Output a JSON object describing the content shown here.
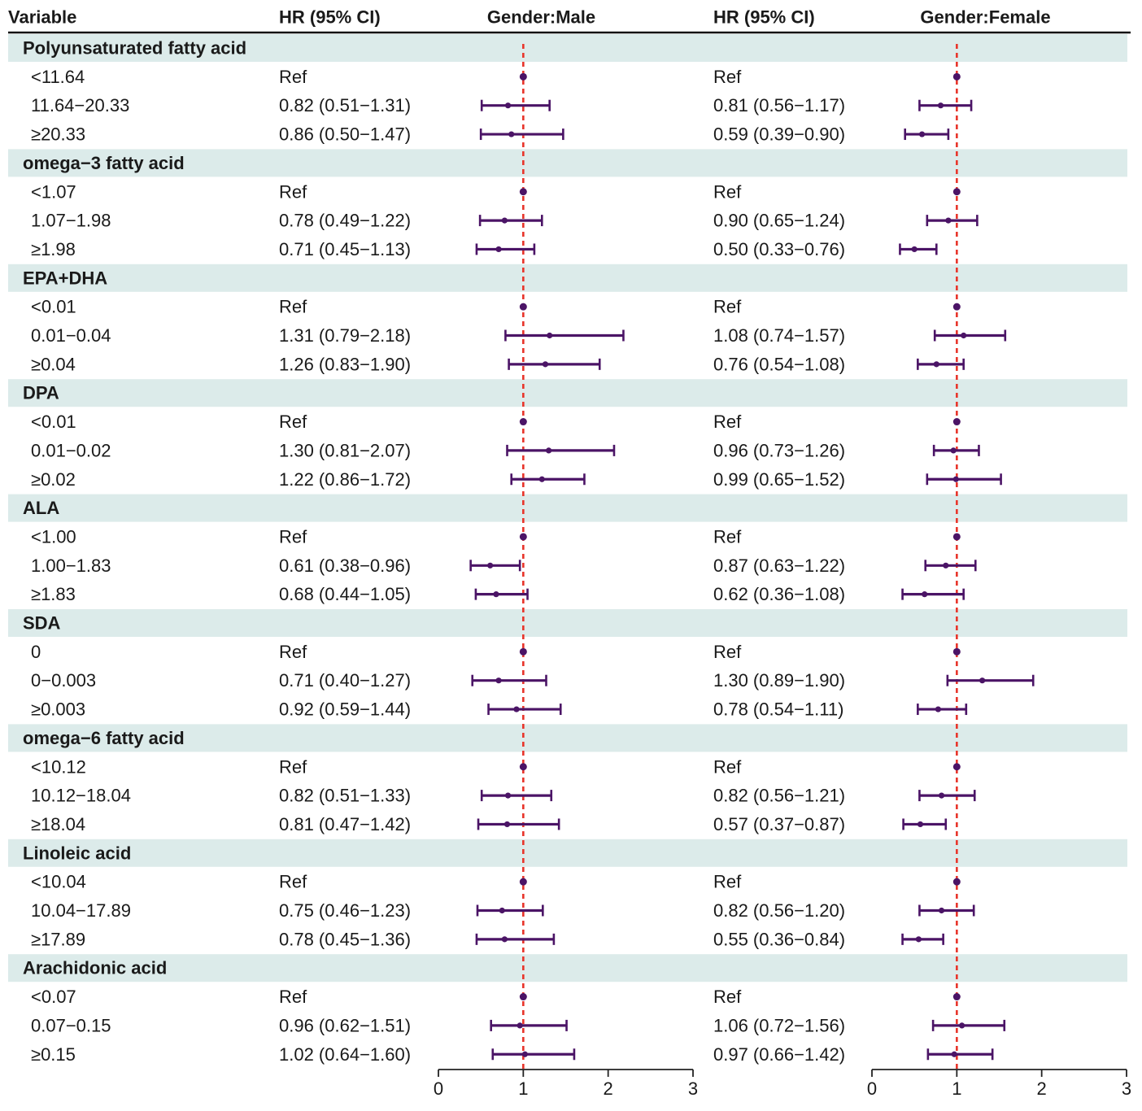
{
  "chart_data": {
    "type": "forest",
    "headers": {
      "variable": "Variable",
      "hr_male": "HR (95% CI)",
      "panel_male": "Gender:Male",
      "hr_female": "HR (95% CI)",
      "panel_female": "Gender:Female"
    },
    "reference_line": 1,
    "xlim": [
      0,
      3
    ],
    "xticks": [
      "0",
      "1",
      "2",
      "3"
    ],
    "groups": [
      {
        "name": "Polyunsaturated fatty acid",
        "rows": [
          {
            "label": "<11.64",
            "male": {
              "text": "Ref",
              "hr": 1
            },
            "female": {
              "text": "Ref",
              "hr": 1
            }
          },
          {
            "label": "11.64−20.33",
            "male": {
              "text": "0.82 (0.51−1.31)",
              "hr": 0.82,
              "lo": 0.51,
              "hi": 1.31
            },
            "female": {
              "text": "0.81 (0.56−1.17)",
              "hr": 0.81,
              "lo": 0.56,
              "hi": 1.17
            }
          },
          {
            "label": "≥20.33",
            "male": {
              "text": "0.86 (0.50−1.47)",
              "hr": 0.86,
              "lo": 0.5,
              "hi": 1.47
            },
            "female": {
              "text": "0.59 (0.39−0.90)",
              "hr": 0.59,
              "lo": 0.39,
              "hi": 0.9
            }
          }
        ]
      },
      {
        "name": "omega−3 fatty acid",
        "rows": [
          {
            "label": "<1.07",
            "male": {
              "text": "Ref",
              "hr": 1
            },
            "female": {
              "text": "Ref",
              "hr": 1
            }
          },
          {
            "label": "1.07−1.98",
            "male": {
              "text": "0.78 (0.49−1.22)",
              "hr": 0.78,
              "lo": 0.49,
              "hi": 1.22
            },
            "female": {
              "text": "0.90 (0.65−1.24)",
              "hr": 0.9,
              "lo": 0.65,
              "hi": 1.24
            }
          },
          {
            "label": "≥1.98",
            "male": {
              "text": "0.71 (0.45−1.13)",
              "hr": 0.71,
              "lo": 0.45,
              "hi": 1.13
            },
            "female": {
              "text": "0.50 (0.33−0.76)",
              "hr": 0.5,
              "lo": 0.33,
              "hi": 0.76
            }
          }
        ]
      },
      {
        "name": "EPA+DHA",
        "rows": [
          {
            "label": "<0.01",
            "male": {
              "text": "Ref",
              "hr": 1
            },
            "female": {
              "text": "Ref",
              "hr": 1
            }
          },
          {
            "label": "0.01−0.04",
            "male": {
              "text": "1.31 (0.79−2.18)",
              "hr": 1.31,
              "lo": 0.79,
              "hi": 2.18
            },
            "female": {
              "text": "1.08 (0.74−1.57)",
              "hr": 1.08,
              "lo": 0.74,
              "hi": 1.57
            }
          },
          {
            "label": "≥0.04",
            "male": {
              "text": "1.26 (0.83−1.90)",
              "hr": 1.26,
              "lo": 0.83,
              "hi": 1.9
            },
            "female": {
              "text": "0.76 (0.54−1.08)",
              "hr": 0.76,
              "lo": 0.54,
              "hi": 1.08
            }
          }
        ]
      },
      {
        "name": "DPA",
        "rows": [
          {
            "label": "<0.01",
            "male": {
              "text": "Ref",
              "hr": 1
            },
            "female": {
              "text": "Ref",
              "hr": 1
            }
          },
          {
            "label": "0.01−0.02",
            "male": {
              "text": "1.30 (0.81−2.07)",
              "hr": 1.3,
              "lo": 0.81,
              "hi": 2.07
            },
            "female": {
              "text": "0.96 (0.73−1.26)",
              "hr": 0.96,
              "lo": 0.73,
              "hi": 1.26
            }
          },
          {
            "label": "≥0.02",
            "male": {
              "text": "1.22 (0.86−1.72)",
              "hr": 1.22,
              "lo": 0.86,
              "hi": 1.72
            },
            "female": {
              "text": "0.99 (0.65−1.52)",
              "hr": 0.99,
              "lo": 0.65,
              "hi": 1.52
            }
          }
        ]
      },
      {
        "name": "ALA",
        "rows": [
          {
            "label": "<1.00",
            "male": {
              "text": "Ref",
              "hr": 1
            },
            "female": {
              "text": "Ref",
              "hr": 1
            }
          },
          {
            "label": "1.00−1.83",
            "male": {
              "text": "0.61 (0.38−0.96)",
              "hr": 0.61,
              "lo": 0.38,
              "hi": 0.96
            },
            "female": {
              "text": "0.87 (0.63−1.22)",
              "hr": 0.87,
              "lo": 0.63,
              "hi": 1.22
            }
          },
          {
            "label": "≥1.83",
            "male": {
              "text": "0.68 (0.44−1.05)",
              "hr": 0.68,
              "lo": 0.44,
              "hi": 1.05
            },
            "female": {
              "text": "0.62 (0.36−1.08)",
              "hr": 0.62,
              "lo": 0.36,
              "hi": 1.08
            }
          }
        ]
      },
      {
        "name": "SDA",
        "rows": [
          {
            "label": "0",
            "male": {
              "text": "Ref",
              "hr": 1
            },
            "female": {
              "text": "Ref",
              "hr": 1
            }
          },
          {
            "label": "0−0.003",
            "male": {
              "text": "0.71 (0.40−1.27)",
              "hr": 0.71,
              "lo": 0.4,
              "hi": 1.27
            },
            "female": {
              "text": "1.30 (0.89−1.90)",
              "hr": 1.3,
              "lo": 0.89,
              "hi": 1.9
            }
          },
          {
            "label": "≥0.003",
            "male": {
              "text": "0.92 (0.59−1.44)",
              "hr": 0.92,
              "lo": 0.59,
              "hi": 1.44
            },
            "female": {
              "text": "0.78 (0.54−1.11)",
              "hr": 0.78,
              "lo": 0.54,
              "hi": 1.11
            }
          }
        ]
      },
      {
        "name": "omega−6 fatty acid",
        "rows": [
          {
            "label": "<10.12",
            "male": {
              "text": "Ref",
              "hr": 1
            },
            "female": {
              "text": "Ref",
              "hr": 1
            }
          },
          {
            "label": "10.12−18.04",
            "male": {
              "text": "0.82 (0.51−1.33)",
              "hr": 0.82,
              "lo": 0.51,
              "hi": 1.33
            },
            "female": {
              "text": "0.82 (0.56−1.21)",
              "hr": 0.82,
              "lo": 0.56,
              "hi": 1.21
            }
          },
          {
            "label": "≥18.04",
            "male": {
              "text": "0.81 (0.47−1.42)",
              "hr": 0.81,
              "lo": 0.47,
              "hi": 1.42
            },
            "female": {
              "text": "0.57 (0.37−0.87)",
              "hr": 0.57,
              "lo": 0.37,
              "hi": 0.87
            }
          }
        ]
      },
      {
        "name": "Linoleic acid",
        "rows": [
          {
            "label": "<10.04",
            "male": {
              "text": "Ref",
              "hr": 1
            },
            "female": {
              "text": "Ref",
              "hr": 1
            }
          },
          {
            "label": "10.04−17.89",
            "male": {
              "text": "0.75 (0.46−1.23)",
              "hr": 0.75,
              "lo": 0.46,
              "hi": 1.23
            },
            "female": {
              "text": "0.82 (0.56−1.20)",
              "hr": 0.82,
              "lo": 0.56,
              "hi": 1.2
            }
          },
          {
            "label": "≥17.89",
            "male": {
              "text": "0.78 (0.45−1.36)",
              "hr": 0.78,
              "lo": 0.45,
              "hi": 1.36
            },
            "female": {
              "text": "0.55 (0.36−0.84)",
              "hr": 0.55,
              "lo": 0.36,
              "hi": 0.84
            }
          }
        ]
      },
      {
        "name": "Arachidonic acid",
        "rows": [
          {
            "label": "<0.07",
            "male": {
              "text": "Ref",
              "hr": 1
            },
            "female": {
              "text": "Ref",
              "hr": 1
            }
          },
          {
            "label": "0.07−0.15",
            "male": {
              "text": "0.96 (0.62−1.51)",
              "hr": 0.96,
              "lo": 0.62,
              "hi": 1.51
            },
            "female": {
              "text": "1.06 (0.72−1.56)",
              "hr": 1.06,
              "lo": 0.72,
              "hi": 1.56
            }
          },
          {
            "label": "≥0.15",
            "male": {
              "text": "1.02 (0.64−1.60)",
              "hr": 1.02,
              "lo": 0.64,
              "hi": 1.6
            },
            "female": {
              "text": "0.97 (0.66−1.42)",
              "hr": 0.97,
              "lo": 0.66,
              "hi": 1.42
            }
          }
        ]
      }
    ],
    "colors": {
      "band": "#dcebea",
      "ci": "#4b1466",
      "point": "#4b1466",
      "ref_line": "#e8342a",
      "axis": "#222222"
    }
  }
}
